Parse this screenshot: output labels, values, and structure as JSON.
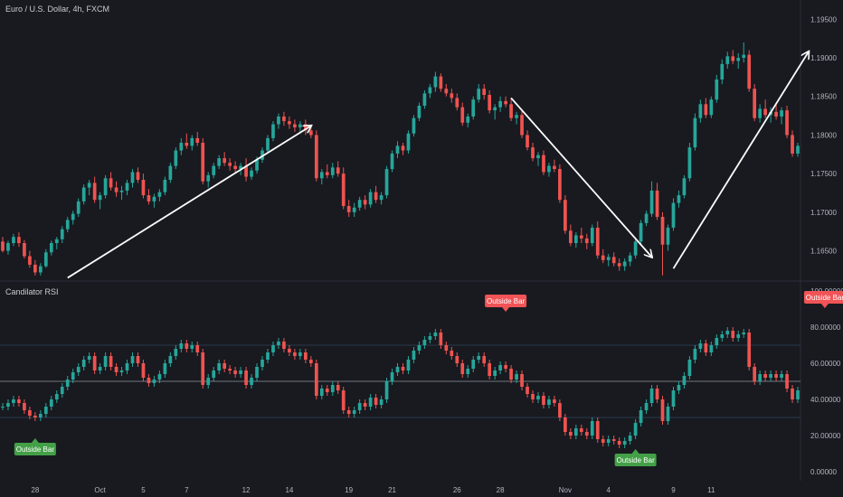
{
  "header": {
    "symbol_title": "Euro / U.S. Dollar, 4h, FXCM",
    "indicator_title": "Candilator RSI"
  },
  "colors": {
    "background": "#181a20",
    "up": "#26a69a",
    "down": "#ef5350",
    "label_green": "#43a047",
    "label_red": "#f15356",
    "arrow": "#ffffff",
    "grid_line": "#2c3e50",
    "mid_line": "#9aa0a6"
  },
  "chart_data": [
    {
      "type": "candlestick",
      "title": "Euro / U.S. Dollar, 4h, FXCM",
      "price_axis_ticks": [
        "1.19500",
        "1.19000",
        "1.18500",
        "1.18000",
        "1.17500",
        "1.17000",
        "1.16500"
      ],
      "ylim": [
        1.1612,
        1.1975
      ],
      "x_ticks": [
        "28",
        "Oct",
        "5",
        "7",
        "12",
        "14",
        "19",
        "21",
        "26",
        "28",
        "Nov",
        "4",
        "9",
        "11"
      ],
      "trend_arrows": [
        {
          "from": {
            "bar": 12,
            "price": 1.1615
          },
          "to": {
            "bar": 57,
            "price": 1.1812
          }
        },
        {
          "from": {
            "bar": 94,
            "price": 1.1848
          },
          "to": {
            "bar": 120,
            "price": 1.1642
          }
        },
        {
          "from": {
            "bar": 124,
            "price": 1.1627
          },
          "to": {
            "bar": 149,
            "price": 1.1908
          }
        }
      ],
      "bars": [
        [
          1.1662,
          1.1668,
          1.1648,
          1.165
        ],
        [
          1.165,
          1.1663,
          1.1645,
          1.166
        ],
        [
          1.166,
          1.1672,
          1.1656,
          1.1668
        ],
        [
          1.1668,
          1.1674,
          1.1655,
          1.166
        ],
        [
          1.166,
          1.1664,
          1.164,
          1.1643
        ],
        [
          1.1643,
          1.165,
          1.1628,
          1.1632
        ],
        [
          1.1632,
          1.1638,
          1.1618,
          1.1622
        ],
        [
          1.1622,
          1.1634,
          1.1618,
          1.163
        ],
        [
          1.163,
          1.1652,
          1.1628,
          1.1648
        ],
        [
          1.1648,
          1.1663,
          1.1644,
          1.166
        ],
        [
          1.166,
          1.1668,
          1.1652,
          1.1665
        ],
        [
          1.1665,
          1.1682,
          1.166,
          1.1678
        ],
        [
          1.1678,
          1.1694,
          1.1674,
          1.169
        ],
        [
          1.169,
          1.1702,
          1.1684,
          1.1698
        ],
        [
          1.1698,
          1.1718,
          1.1694,
          1.1714
        ],
        [
          1.1714,
          1.1736,
          1.171,
          1.1732
        ],
        [
          1.1732,
          1.1742,
          1.1722,
          1.1738
        ],
        [
          1.1738,
          1.1746,
          1.1712,
          1.1716
        ],
        [
          1.1716,
          1.1726,
          1.1704,
          1.1722
        ],
        [
          1.1722,
          1.1748,
          1.1718,
          1.1744
        ],
        [
          1.1744,
          1.1752,
          1.1728,
          1.1732
        ],
        [
          1.1732,
          1.174,
          1.172,
          1.1726
        ],
        [
          1.1726,
          1.1734,
          1.1716,
          1.1728
        ],
        [
          1.1728,
          1.1742,
          1.1722,
          1.1738
        ],
        [
          1.1738,
          1.1756,
          1.1732,
          1.1752
        ],
        [
          1.1752,
          1.1758,
          1.1738,
          1.1742
        ],
        [
          1.1742,
          1.175,
          1.1718,
          1.1722
        ],
        [
          1.1722,
          1.173,
          1.171,
          1.1714
        ],
        [
          1.1714,
          1.1724,
          1.1706,
          1.172
        ],
        [
          1.172,
          1.173,
          1.1714,
          1.1726
        ],
        [
          1.1726,
          1.1746,
          1.1722,
          1.1742
        ],
        [
          1.1742,
          1.1764,
          1.1738,
          1.176
        ],
        [
          1.176,
          1.1784,
          1.1756,
          1.178
        ],
        [
          1.178,
          1.1796,
          1.1774,
          1.179
        ],
        [
          1.179,
          1.1802,
          1.1782,
          1.1786
        ],
        [
          1.1786,
          1.18,
          1.178,
          1.1796
        ],
        [
          1.1796,
          1.1804,
          1.1786,
          1.179
        ],
        [
          1.179,
          1.1796,
          1.1736,
          1.174
        ],
        [
          1.174,
          1.1752,
          1.1732,
          1.1748
        ],
        [
          1.1748,
          1.1764,
          1.1744,
          1.176
        ],
        [
          1.176,
          1.1774,
          1.1756,
          1.177
        ],
        [
          1.177,
          1.1778,
          1.176,
          1.1764
        ],
        [
          1.1764,
          1.177,
          1.1754,
          1.176
        ],
        [
          1.176,
          1.1766,
          1.1752,
          1.1756
        ],
        [
          1.1756,
          1.1764,
          1.1748,
          1.176
        ],
        [
          1.176,
          1.177,
          1.174,
          1.1746
        ],
        [
          1.1746,
          1.1758,
          1.1742,
          1.1754
        ],
        [
          1.1754,
          1.1772,
          1.175,
          1.1768
        ],
        [
          1.1768,
          1.1784,
          1.1764,
          1.178
        ],
        [
          1.178,
          1.18,
          1.1776,
          1.1796
        ],
        [
          1.1796,
          1.1818,
          1.1792,
          1.1814
        ],
        [
          1.1814,
          1.1828,
          1.1808,
          1.1824
        ],
        [
          1.1824,
          1.183,
          1.1812,
          1.1818
        ],
        [
          1.1818,
          1.1824,
          1.1808,
          1.1814
        ],
        [
          1.1814,
          1.182,
          1.1804,
          1.181
        ],
        [
          1.181,
          1.1818,
          1.1802,
          1.1814
        ],
        [
          1.1814,
          1.182,
          1.18,
          1.1806
        ],
        [
          1.1806,
          1.1812,
          1.1796,
          1.18
        ],
        [
          1.18,
          1.1806,
          1.174,
          1.1744
        ],
        [
          1.1744,
          1.1756,
          1.1736,
          1.1752
        ],
        [
          1.1752,
          1.1762,
          1.1744,
          1.1748
        ],
        [
          1.1748,
          1.1764,
          1.1744,
          1.1758
        ],
        [
          1.1758,
          1.1766,
          1.1746,
          1.175
        ],
        [
          1.175,
          1.1758,
          1.1704,
          1.1708
        ],
        [
          1.1708,
          1.1716,
          1.1694,
          1.17
        ],
        [
          1.17,
          1.1712,
          1.1694,
          1.1706
        ],
        [
          1.1706,
          1.172,
          1.1702,
          1.1716
        ],
        [
          1.1716,
          1.1722,
          1.1704,
          1.171
        ],
        [
          1.171,
          1.173,
          1.1706,
          1.1726
        ],
        [
          1.1726,
          1.1734,
          1.1712,
          1.1716
        ],
        [
          1.1716,
          1.1726,
          1.171,
          1.1722
        ],
        [
          1.1722,
          1.176,
          1.1718,
          1.1756
        ],
        [
          1.1756,
          1.178,
          1.1752,
          1.1776
        ],
        [
          1.1776,
          1.1792,
          1.177,
          1.1786
        ],
        [
          1.1786,
          1.179,
          1.1774,
          1.178
        ],
        [
          1.178,
          1.1806,
          1.1776,
          1.1802
        ],
        [
          1.1802,
          1.1826,
          1.1798,
          1.1822
        ],
        [
          1.1822,
          1.1842,
          1.1818,
          1.1838
        ],
        [
          1.1838,
          1.1858,
          1.1834,
          1.1854
        ],
        [
          1.1854,
          1.1866,
          1.1848,
          1.1862
        ],
        [
          1.1862,
          1.1882,
          1.1856,
          1.1876
        ],
        [
          1.1876,
          1.188,
          1.1856,
          1.186
        ],
        [
          1.186,
          1.1866,
          1.185,
          1.1854
        ],
        [
          1.1854,
          1.186,
          1.1842,
          1.1848
        ],
        [
          1.1848,
          1.1854,
          1.1832,
          1.1836
        ],
        [
          1.1836,
          1.1842,
          1.1812,
          1.1816
        ],
        [
          1.1816,
          1.1828,
          1.181,
          1.1824
        ],
        [
          1.1824,
          1.185,
          1.182,
          1.1846
        ],
        [
          1.1846,
          1.1866,
          1.1842,
          1.186
        ],
        [
          1.186,
          1.1866,
          1.1846,
          1.1852
        ],
        [
          1.1852,
          1.1858,
          1.1828,
          1.1832
        ],
        [
          1.1832,
          1.184,
          1.182,
          1.1836
        ],
        [
          1.1836,
          1.185,
          1.183,
          1.1844
        ],
        [
          1.1844,
          1.185,
          1.1836,
          1.184
        ],
        [
          1.184,
          1.1848,
          1.1818,
          1.1822
        ],
        [
          1.1822,
          1.183,
          1.1814,
          1.1826
        ],
        [
          1.1826,
          1.1832,
          1.1796,
          1.18
        ],
        [
          1.18,
          1.1806,
          1.178,
          1.1784
        ],
        [
          1.1784,
          1.179,
          1.1766,
          1.177
        ],
        [
          1.177,
          1.1778,
          1.176,
          1.1774
        ],
        [
          1.1774,
          1.178,
          1.1748,
          1.1752
        ],
        [
          1.1752,
          1.1764,
          1.1746,
          1.176
        ],
        [
          1.176,
          1.1768,
          1.1752,
          1.1756
        ],
        [
          1.1756,
          1.1762,
          1.1712,
          1.1716
        ],
        [
          1.1716,
          1.1722,
          1.1672,
          1.1676
        ],
        [
          1.1676,
          1.1684,
          1.1656,
          1.166
        ],
        [
          1.166,
          1.1674,
          1.1654,
          1.167
        ],
        [
          1.167,
          1.168,
          1.166,
          1.1666
        ],
        [
          1.1666,
          1.1672,
          1.1652,
          1.166
        ],
        [
          1.166,
          1.1684,
          1.1656,
          1.168
        ],
        [
          1.168,
          1.1688,
          1.164,
          1.1644
        ],
        [
          1.1644,
          1.1652,
          1.1634,
          1.1638
        ],
        [
          1.1638,
          1.1646,
          1.163,
          1.1642
        ],
        [
          1.1642,
          1.1648,
          1.163,
          1.1634
        ],
        [
          1.1634,
          1.164,
          1.1624,
          1.163
        ],
        [
          1.163,
          1.164,
          1.1624,
          1.1636
        ],
        [
          1.1636,
          1.1648,
          1.163,
          1.1644
        ],
        [
          1.1644,
          1.1666,
          1.164,
          1.1662
        ],
        [
          1.1662,
          1.169,
          1.1658,
          1.1686
        ],
        [
          1.1686,
          1.1702,
          1.1682,
          1.1698
        ],
        [
          1.1698,
          1.174,
          1.1694,
          1.1728
        ],
        [
          1.1728,
          1.1738,
          1.169,
          1.1694
        ],
        [
          1.1694,
          1.17,
          1.1618,
          1.1658
        ],
        [
          1.1658,
          1.1684,
          1.165,
          1.168
        ],
        [
          1.168,
          1.1718,
          1.1676,
          1.1712
        ],
        [
          1.1712,
          1.1728,
          1.1706,
          1.1722
        ],
        [
          1.1722,
          1.1748,
          1.1718,
          1.1744
        ],
        [
          1.1744,
          1.179,
          1.174,
          1.1784
        ],
        [
          1.1784,
          1.1828,
          1.178,
          1.1822
        ],
        [
          1.1822,
          1.1846,
          1.1816,
          1.184
        ],
        [
          1.184,
          1.1848,
          1.1822,
          1.1826
        ],
        [
          1.1826,
          1.185,
          1.1822,
          1.1846
        ],
        [
          1.1846,
          1.1878,
          1.1842,
          1.1872
        ],
        [
          1.1872,
          1.1898,
          1.1866,
          1.1892
        ],
        [
          1.1892,
          1.1908,
          1.1886,
          1.1902
        ],
        [
          1.1902,
          1.191,
          1.1892,
          1.1896
        ],
        [
          1.1896,
          1.1906,
          1.1886,
          1.19
        ],
        [
          1.19,
          1.192,
          1.1894,
          1.1904
        ],
        [
          1.1904,
          1.191,
          1.1856,
          1.186
        ],
        [
          1.186,
          1.1866,
          1.1818,
          1.1822
        ],
        [
          1.1822,
          1.184,
          1.1816,
          1.1834
        ],
        [
          1.1834,
          1.1846,
          1.1822,
          1.1826
        ],
        [
          1.1826,
          1.1836,
          1.1816,
          1.183
        ],
        [
          1.183,
          1.1842,
          1.182,
          1.1824
        ],
        [
          1.1824,
          1.1836,
          1.1814,
          1.1832
        ],
        [
          1.1832,
          1.1838,
          1.1796,
          1.18
        ],
        [
          1.18,
          1.1806,
          1.1772,
          1.1776
        ],
        [
          1.1776,
          1.179,
          1.1772,
          1.1786
        ]
      ]
    },
    {
      "type": "candlestick",
      "title": "Candilator RSI",
      "rsi_axis_ticks": [
        "100.00000",
        "80.00000",
        "60.00000",
        "40.00000",
        "20.00000",
        "0.00000"
      ],
      "ylim": [
        -5,
        105
      ],
      "levels": [
        70,
        50,
        30
      ],
      "signals": [
        {
          "label": "Outside Bar",
          "bar": 6,
          "rsi": 28,
          "type": "bullish"
        },
        {
          "label": "Outside Bar",
          "bar": 93,
          "rsi": 79,
          "type": "bearish"
        },
        {
          "label": "Outside Bar",
          "bar": 117,
          "rsi": 22,
          "type": "bullish"
        },
        {
          "label": "Outside Bar",
          "bar": 152,
          "rsi": 81,
          "type": "bearish"
        }
      ],
      "rsi_values": [
        36,
        38,
        40,
        38,
        34,
        31,
        30,
        32,
        36,
        40,
        43,
        47,
        51,
        55,
        58,
        62,
        64,
        56,
        58,
        64,
        58,
        55,
        56,
        60,
        64,
        60,
        52,
        49,
        51,
        54,
        60,
        64,
        68,
        71,
        68,
        70,
        66,
        48,
        52,
        56,
        60,
        57,
        56,
        54,
        56,
        48,
        52,
        58,
        62,
        66,
        70,
        72,
        68,
        66,
        64,
        66,
        62,
        60,
        42,
        46,
        44,
        48,
        45,
        34,
        32,
        34,
        38,
        36,
        41,
        37,
        40,
        50,
        55,
        58,
        56,
        62,
        67,
        70,
        73,
        75,
        77,
        70,
        67,
        64,
        60,
        54,
        57,
        62,
        64,
        60,
        53,
        56,
        59,
        57,
        51,
        54,
        47,
        43,
        40,
        42,
        37,
        40,
        38,
        30,
        22,
        20,
        24,
        22,
        20,
        28,
        18,
        16,
        18,
        17,
        15,
        17,
        20,
        27,
        34,
        38,
        46,
        40,
        28,
        36,
        45,
        48,
        53,
        62,
        68,
        71,
        66,
        70,
        74,
        76,
        78,
        74,
        76,
        77,
        58,
        50,
        54,
        52,
        54,
        52,
        54,
        46,
        40,
        45
      ]
    }
  ]
}
